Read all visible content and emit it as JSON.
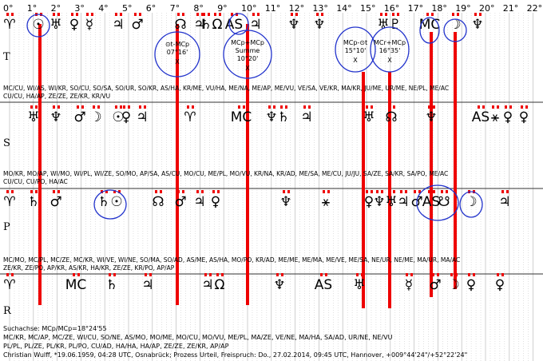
{
  "header": {
    "degrees": [
      "0°",
      "1°",
      "2°",
      "3°",
      "4°",
      "5°",
      "6°",
      "7°",
      "8°",
      "9°",
      "10°",
      "11°",
      "12°",
      "13°",
      "14°",
      "15°",
      "16°",
      "17°",
      "18°",
      "19°",
      "20°",
      "21°",
      "22°"
    ]
  },
  "rows": [
    {
      "label": "T",
      "glyphs": [
        "♈",
        "☉",
        "♅",
        "♀",
        "☿",
        "♃",
        "♂",
        "☊",
        "♃",
        "♄",
        "Ω",
        "AS",
        "♃",
        "♆",
        "♆",
        "♅",
        "♇",
        "MC",
        "☽",
        "♆"
      ]
    },
    {
      "label": "S",
      "glyphs": [
        "♅",
        "♆",
        "♂",
        "☽",
        "☉",
        "♀",
        "♃",
        "♈",
        "MC",
        "♆",
        "♄",
        "♃",
        "♅",
        "☊",
        "♆",
        "AS",
        "⚹",
        "♀",
        "♀"
      ]
    },
    {
      "label": "P",
      "glyphs": [
        "♈",
        "♄",
        "♂",
        "♄",
        "☉",
        "☊",
        "♂",
        "♃",
        "♀",
        "♆",
        "⚹",
        "♀",
        "♆",
        "♅",
        "♃",
        "♂",
        "AS",
        "☋",
        "☽",
        "♃"
      ]
    },
    {
      "label": "R",
      "glyphs": [
        "♈",
        "MC",
        "♄",
        "♃",
        "♃",
        "Ω",
        "♆",
        "AS",
        "♅",
        "☿",
        "♂",
        "☽",
        "♀",
        "♀"
      ]
    }
  ],
  "circles": [
    {
      "lines": [
        "⊙t-MCp",
        "07°16'",
        "X"
      ]
    },
    {
      "lines": [
        "MCp+MCp",
        "Summe",
        "10°20'",
        "X"
      ]
    },
    {
      "lines": [
        "MCp-⊙t",
        "15°10'",
        "X"
      ]
    },
    {
      "lines": [
        "MCr+MCp",
        "16°35'",
        "X"
      ]
    }
  ],
  "annotations": [
    [
      "MC/CU, WI/AS, WI/KR, SO/CU, SO/SA, SO/UR, SO/KR, AS/HA, KR/ME, VU/HA, ME/NA, ME/AP, ME/VU, VE/SA, VE/KR, MA/KR, JU/ME, UR/ME, NE/PL, ME/AC",
      "CU/CU, HA/AP, ZE/ZE, ZE/KR, KR/VU"
    ],
    [
      "MO/KR, MO/AP, WI/MO, WI/PL, WI/ZE, SO/MO, AP/SA, AS/CU, MO/CU, ME/PL, MO/VU, KR/NA, KR/AD, ME/SA, ME/CU, JU/JU, SA/ZE, SA/KR, SA/PO, ME/AC",
      "CU/CU, CU/PO, HA/AC"
    ],
    [
      "MC/MO, MC/PL, MC/ZE, MC/KR, WI/VE, WI/NE, SO/MA, SO/AD, AS/ME, AS/HA, MO/PO, KR/AD, ME/ME, ME/MA, ME/VE, ME/SA, NE/UR, NE/ME, MA/UR, MA/AC",
      "ZE/KR, ZE/PO, AP/KR, AS/KR, HA/KR, ZE/ZE, KR/PO, AP/AP"
    ]
  ],
  "footer": [
    "Suchachse: MCp/MCp=18°24'55",
    "MC/KR, MC/AP, MC/ZE, WI/CU, SO/NE, AS/MO, MO/ME, MO/CU, MO/VU, ME/PL, MA/ZE, VE/NE, MA/HA, SA/AD, UR/NE, NE/VU",
    "PL/PL, PL/ZE, PL/KR, PL/PO, CU/AD, HA/HA, HA/AP, ZE/ZE, ZE/KR, AP/AP",
    "Christian Wulff, *19.06.1959, 04:28 UTC, Osnabrück; Prozess Urteil, Freispruch: Do., 27.02.2014, 09:45 UTC, Hannover, +009°44'24\"/+52°22'24\""
  ]
}
